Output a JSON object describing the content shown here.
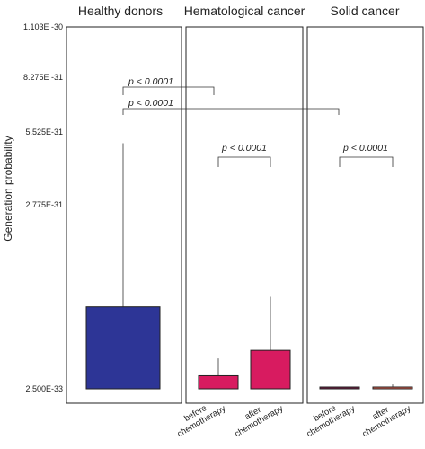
{
  "chart_data": {
    "type": "box",
    "ylabel": "Generation probability",
    "yticks": [
      "1.103E -30",
      "8.275E -31",
      "5.525E-31",
      "2.775E-31",
      "2.500E-33"
    ],
    "ytick_values": [
      1.103e-30,
      8.275e-31,
      5.525e-31,
      2.775e-31,
      2.5e-33
    ],
    "ylim": [
      2.5e-33,
      1.103e-30
    ],
    "grid": false,
    "panels": [
      {
        "title": "Healthy donors",
        "categories": [
          ""
        ],
        "boxes": [
          {
            "label": "",
            "min": 2.5e-33,
            "q1": 2.5e-33,
            "q3": 1.25e-31,
            "max": 5.1e-31,
            "color": "#2d3596"
          }
        ]
      },
      {
        "title": "Hematological cancer",
        "categories": [
          "before chemotherapy",
          "after chemotherapy"
        ],
        "boxes": [
          {
            "label": "before chemotherapy",
            "min": 2.5e-33,
            "q1": 2.5e-33,
            "q3": 2.2e-32,
            "max": 4.8e-32,
            "color": "#d81b60"
          },
          {
            "label": "after chemotherapy",
            "min": 2.5e-33,
            "q1": 2.5e-33,
            "q3": 6e-32,
            "max": 1.4e-31,
            "color": "#d81b60"
          }
        ]
      },
      {
        "title": "Solid cancer",
        "categories": [
          "before chemotherapy",
          "after chemotherapy"
        ],
        "boxes": [
          {
            "label": "before chemotherapy",
            "min": 2.5e-33,
            "q1": 2.5e-33,
            "q3": 3e-33,
            "max": 3e-33,
            "color": "#6d1b3e"
          },
          {
            "label": "after chemotherapy",
            "min": 2.5e-33,
            "q1": 2.5e-33,
            "q3": 5e-33,
            "max": 9e-33,
            "color": "#d9604f"
          }
        ]
      }
    ],
    "annotations": [
      {
        "text": "p < 0.0001",
        "from": "Healthy donors",
        "to": "Hematological cancer"
      },
      {
        "text": "p < 0.0001",
        "from": "Healthy donors",
        "to": "Solid cancer"
      },
      {
        "text": "p < 0.0001",
        "from": "Hematological cancer: before chemotherapy",
        "to": "Hematological cancer: after chemotherapy"
      },
      {
        "text": "p < 0.0001",
        "from": "Solid cancer: before chemotherapy",
        "to": "Solid cancer: after chemotherapy"
      }
    ]
  }
}
